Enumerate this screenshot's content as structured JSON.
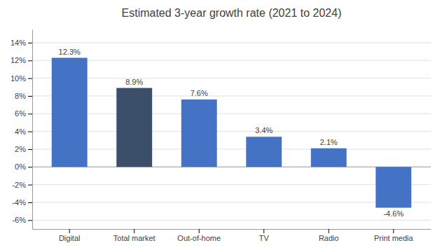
{
  "chart_data": {
    "type": "bar",
    "title": "Estimated 3-year growth rate (2021 to 2024)",
    "categories": [
      "Digital",
      "Total market",
      "Out-of-home",
      "TV",
      "Radio",
      "Print media"
    ],
    "values": [
      12.3,
      8.9,
      7.6,
      3.4,
      2.1,
      -4.6
    ],
    "value_labels": [
      "12.3%",
      "8.9%",
      "7.6%",
      "3.4%",
      "2.1%",
      "-4.6%"
    ],
    "colors": [
      "#4472C4",
      "#3B4F6B",
      "#4472C4",
      "#4472C4",
      "#4472C4",
      "#4472C4"
    ],
    "ylim": [
      -7,
      15.5
    ],
    "yticks": [
      {
        "value": -6,
        "label": "-6%"
      },
      {
        "value": -4,
        "label": "-4%"
      },
      {
        "value": -2,
        "label": "-2%"
      },
      {
        "value": 0,
        "label": "0%"
      },
      {
        "value": 2,
        "label": "2%"
      },
      {
        "value": 4,
        "label": "4%"
      },
      {
        "value": 6,
        "label": "6%"
      },
      {
        "value": 8,
        "label": "8%"
      },
      {
        "value": 10,
        "label": "10%"
      },
      {
        "value": 12,
        "label": "12%"
      },
      {
        "value": 14,
        "label": "14%"
      }
    ],
    "grid": true,
    "data_labels": true
  }
}
